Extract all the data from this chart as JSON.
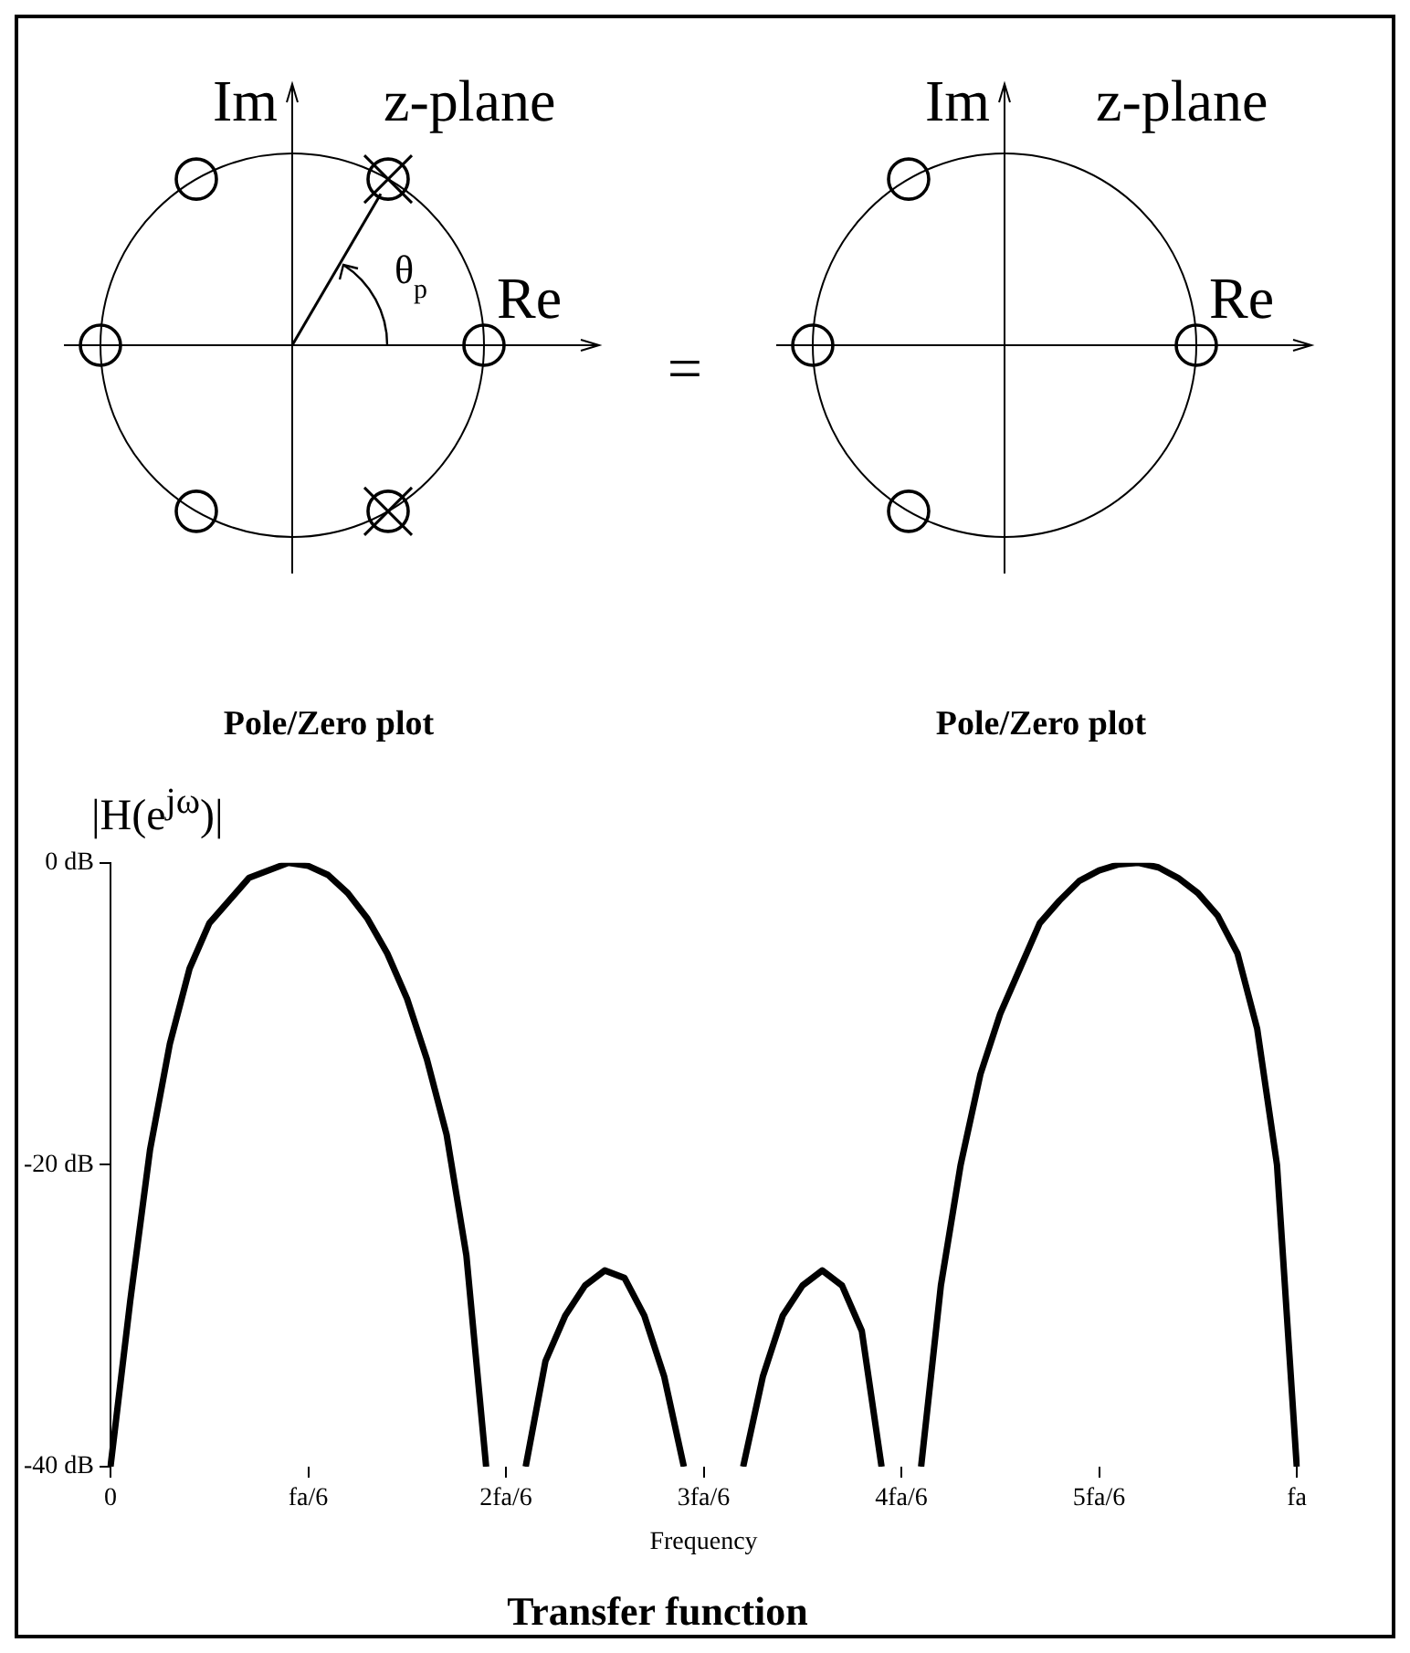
{
  "chart_data": [
    {
      "type": "other",
      "title": "Pole/Zero plot",
      "subtitle": "z-plane",
      "xlabel": "Re",
      "ylabel": "Im",
      "annotations": [
        "θ$_{p}$",
        "="
      ]
    },
    {
      "type": "other",
      "title": "Pole/Zero plot",
      "subtitle": "z-plane",
      "xlabel": "Re",
      "ylabel": "Im"
    },
    {
      "type": "line",
      "title": "Transfer function",
      "xlabel": "Frequency",
      "ylabel": "|H(e$^{jω}$)|",
      "ylim": [
        -40,
        0
      ],
      "grid": false,
      "legend": false,
      "line_style": "solid",
      "marker": "none",
      "categories": [
        "0",
        null,
        null,
        null,
        null,
        null,
        null,
        null,
        null,
        null,
        "fa/6",
        null,
        null,
        null,
        null,
        null,
        null,
        null,
        null,
        null,
        "2fa/6",
        null,
        null,
        null,
        null,
        null,
        null,
        null,
        null,
        null,
        "3fa/6",
        null,
        null,
        null,
        null,
        null,
        null,
        null,
        null,
        null,
        "4fa/6",
        null,
        null,
        null,
        null,
        null,
        null,
        null,
        null,
        null,
        "5fa/6",
        null,
        null,
        null,
        null,
        null,
        null,
        null,
        null,
        null,
        "fa"
      ],
      "yticks": [
        {
          "value": -40,
          "label": "-40 dB"
        },
        {
          "value": -20,
          "label": "-20 dB"
        },
        {
          "value": 0,
          "label": "0 dB"
        }
      ],
      "series": [
        {
          "color": "#000000",
          "values": [
            -40,
            -29,
            -19,
            -12,
            -7,
            -4,
            -2.5,
            -1,
            -0.5,
            0,
            -0.2,
            -0.8,
            -2,
            -3.7,
            -6,
            -9,
            -13,
            -18,
            -26,
            -40,
            null,
            -40,
            -33,
            -30,
            -28,
            -27,
            -27.5,
            -30,
            -34,
            -40,
            null,
            null,
            -40,
            -34,
            -30,
            -28,
            -27,
            -28,
            -31,
            -40,
            null,
            -40,
            -28,
            -20,
            -14,
            -10,
            -7,
            -4,
            -2.5,
            -1.2,
            -0.5,
            -0.1,
            0,
            -0.3,
            -1,
            -2,
            -3.5,
            -6,
            -11,
            -20,
            -40
          ]
        }
      ]
    }
  ]
}
